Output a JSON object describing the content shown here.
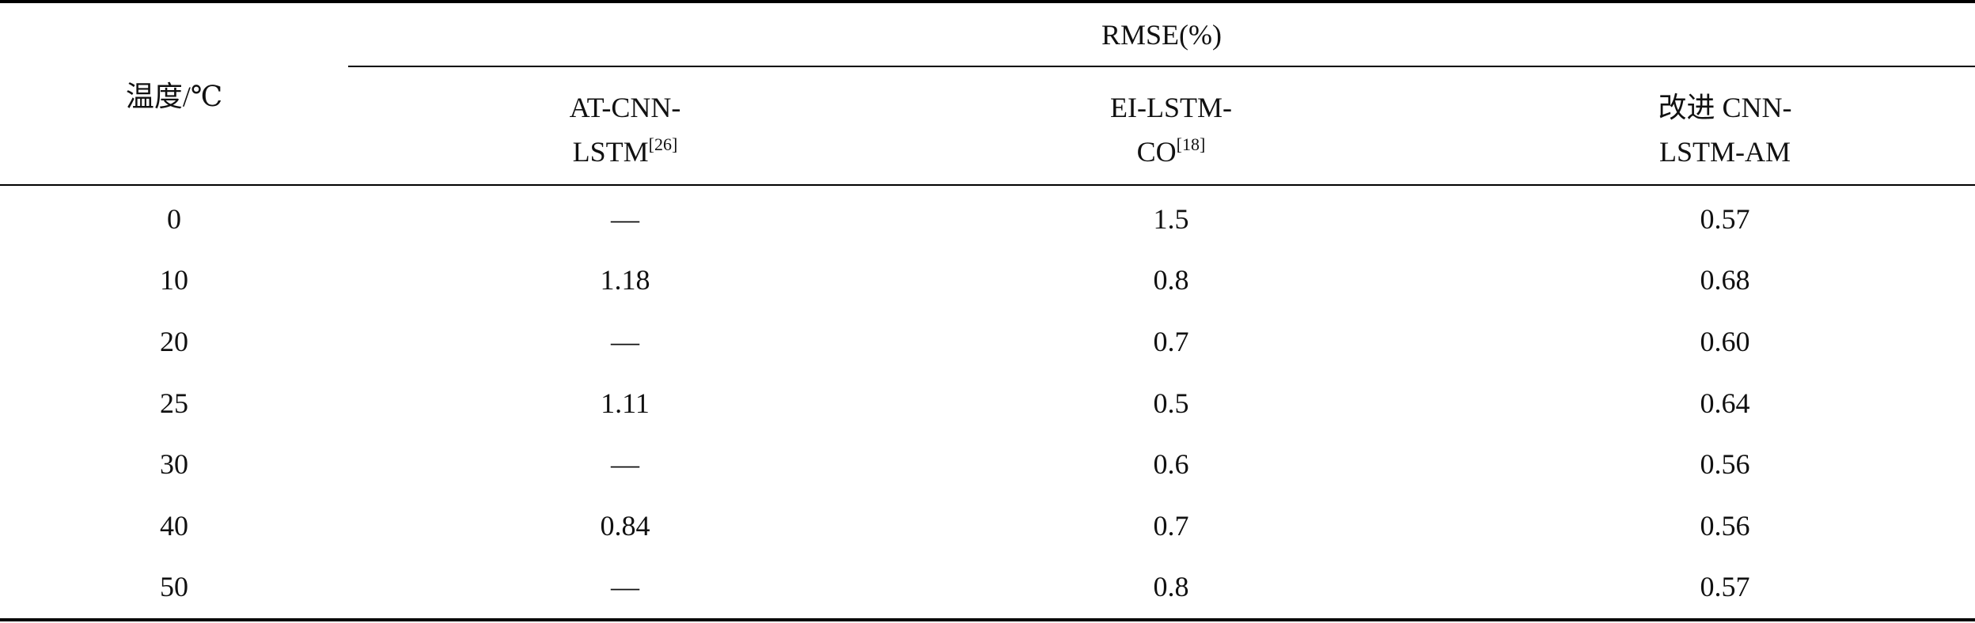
{
  "table": {
    "temp_header": "温度/℃",
    "group_header": "RMSE(%)",
    "columns": [
      {
        "line1": "AT-CNN-",
        "line2": "LSTM",
        "ref": "[26]"
      },
      {
        "line1": "EI-LSTM-",
        "line2": "CO",
        "ref": "[18]"
      },
      {
        "line1": "改进 CNN-",
        "line2": "LSTM-AM",
        "ref": ""
      }
    ],
    "rows": [
      {
        "temp": "0",
        "v1": "—",
        "v2": "1.5",
        "v3": "0.57"
      },
      {
        "temp": "10",
        "v1": "1.18",
        "v2": "0.8",
        "v3": "0.68"
      },
      {
        "temp": "20",
        "v1": "—",
        "v2": "0.7",
        "v3": "0.60"
      },
      {
        "temp": "25",
        "v1": "1.11",
        "v2": "0.5",
        "v3": "0.64"
      },
      {
        "temp": "30",
        "v1": "—",
        "v2": "0.6",
        "v3": "0.56"
      },
      {
        "temp": "40",
        "v1": "0.84",
        "v2": "0.7",
        "v3": "0.56"
      },
      {
        "temp": "50",
        "v1": "—",
        "v2": "0.8",
        "v3": "0.57"
      }
    ]
  }
}
